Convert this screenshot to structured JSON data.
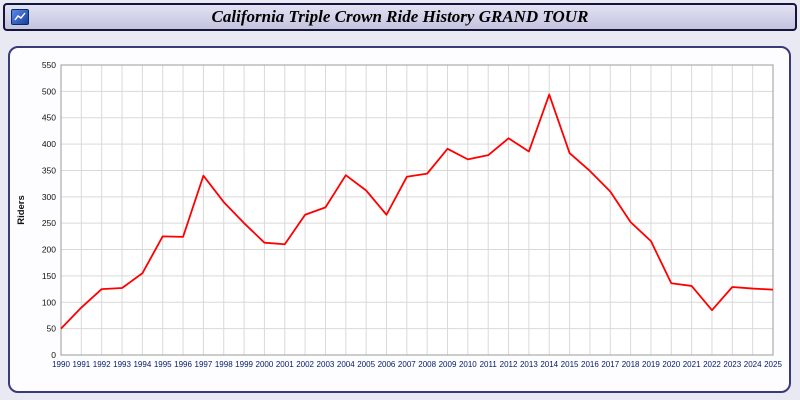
{
  "header": {
    "title": "California Triple Crown Ride History GRAND TOUR"
  },
  "chart_data": {
    "type": "line",
    "title": "California Triple Crown Ride History GRAND TOUR",
    "xlabel": "",
    "ylabel": "Riders",
    "ylim": [
      0,
      550
    ],
    "y_tick_step": 50,
    "grid": true,
    "legend": "none",
    "line_color": "#ff0000",
    "categories": [
      1990,
      1991,
      1992,
      1993,
      1994,
      1995,
      1996,
      1997,
      1998,
      1999,
      2000,
      2001,
      2002,
      2003,
      2004,
      2005,
      2006,
      2007,
      2008,
      2009,
      2010,
      2011,
      2012,
      2013,
      2014,
      2015,
      2016,
      2017,
      2018,
      2019,
      2020,
      2021,
      2022,
      2023,
      2024,
      2025
    ],
    "series": [
      {
        "name": "Riders",
        "values": [
          50,
          90,
          125,
          127,
          155,
          225,
          224,
          340,
          290,
          250,
          213,
          210,
          266,
          280,
          341,
          312,
          266,
          338,
          344,
          391,
          371,
          379,
          411,
          386,
          494,
          383,
          349,
          310,
          252,
          216,
          136,
          131,
          85,
          129,
          126,
          124
        ]
      }
    ]
  },
  "style": {
    "x_tick_color": "#001a66",
    "y_tick_color": "#111111",
    "grid_color": "#d9d9d9",
    "plot_border_color": "#9a9a9a"
  }
}
